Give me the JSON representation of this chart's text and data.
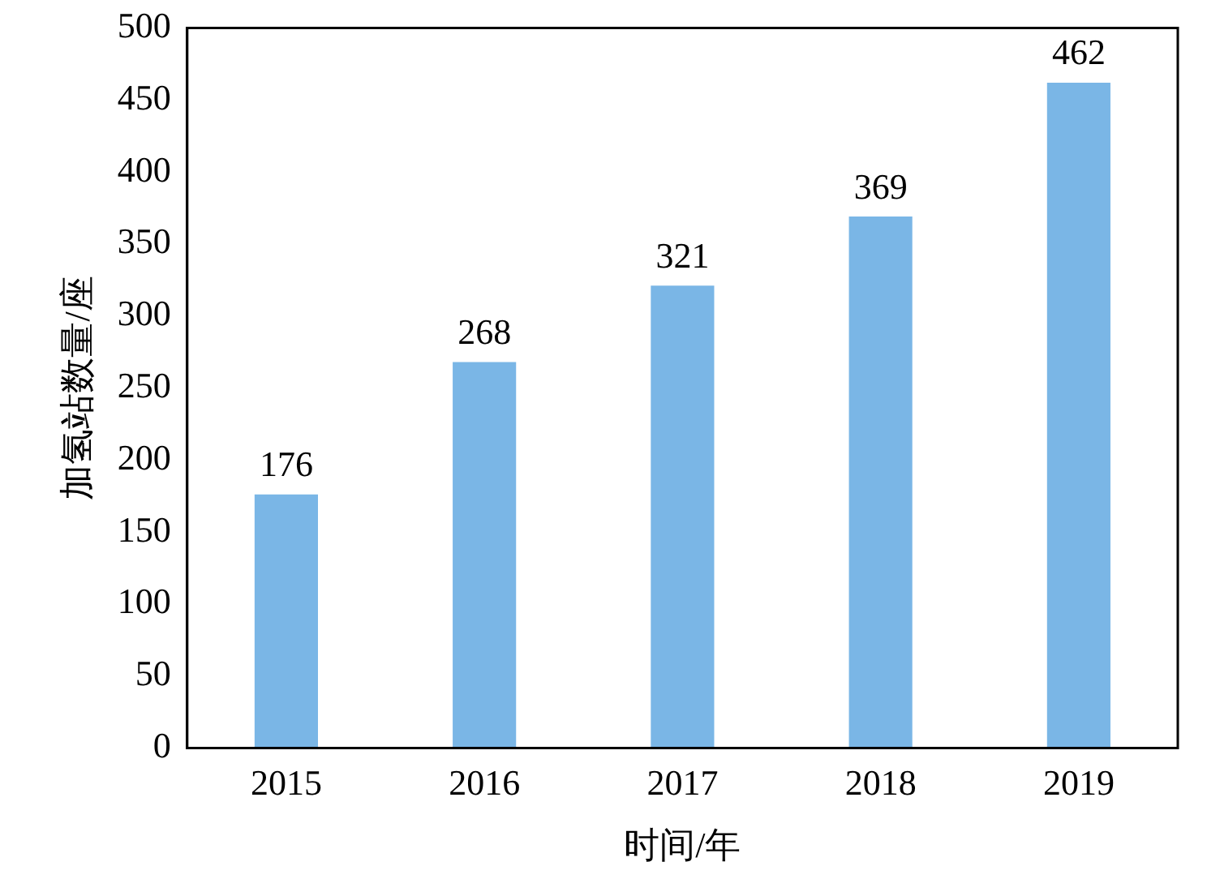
{
  "chart_data": {
    "type": "bar",
    "xlabel": "时间/年",
    "ylabel": "加氢站数量/座",
    "categories": [
      "2015",
      "2016",
      "2017",
      "2018",
      "2019"
    ],
    "values": [
      176,
      268,
      321,
      369,
      462
    ],
    "color": "#7ab6e6",
    "ylim": [
      0,
      500
    ],
    "yticks": [
      0,
      50,
      100,
      150,
      200,
      250,
      300,
      350,
      400,
      450,
      500
    ],
    "data_labels": true,
    "grid": false,
    "legend": false
  }
}
